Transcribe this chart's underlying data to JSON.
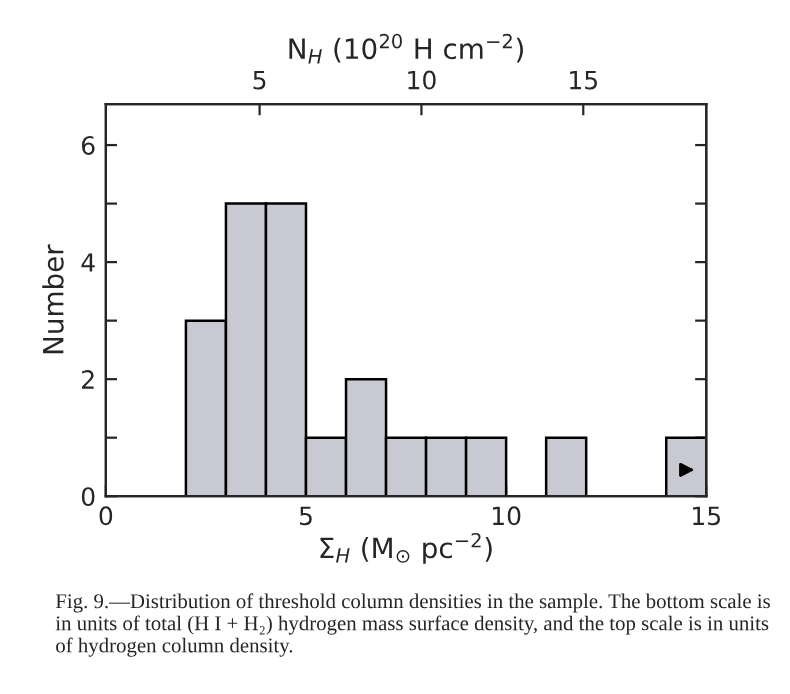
{
  "chart_data": {
    "type": "histogram",
    "xlabel": "Σ$_{H}$ (M$_{⊙}$ pc$^{−2}$)",
    "ylabel": "Number",
    "x2label": "N$_{H}$ (10$^{20}$ H cm$^{−2}$)",
    "bins": [
      2,
      3,
      4,
      5,
      6,
      7,
      8,
      9,
      10,
      11,
      12,
      13,
      14,
      15
    ],
    "values": [
      3,
      5,
      5,
      1,
      2,
      1,
      1,
      1,
      0,
      1,
      0,
      0,
      1
    ],
    "color": "#c9c9d3",
    "xlim": [
      0,
      15
    ],
    "xticks": [
      0,
      5,
      10,
      15
    ],
    "ylim": [
      0,
      6.7
    ],
    "yticks": [
      0,
      {
        "value": 1,
        "label": null
      },
      2,
      {
        "value": 3,
        "label": null
      },
      4,
      {
        "value": 5,
        "label": null
      },
      6
    ],
    "x2lim": [
      0.25,
      18.8
    ],
    "x2ticks": [
      5,
      10,
      15
    ],
    "grid": false,
    "annotations": [
      "Fig. 9.—Distribution of threshold column densities in the sample. The bottom scale is in units of total (H I + H₂) hydrogen mass surface density, and the top scale is in units of hydrogen column density."
    ]
  }
}
